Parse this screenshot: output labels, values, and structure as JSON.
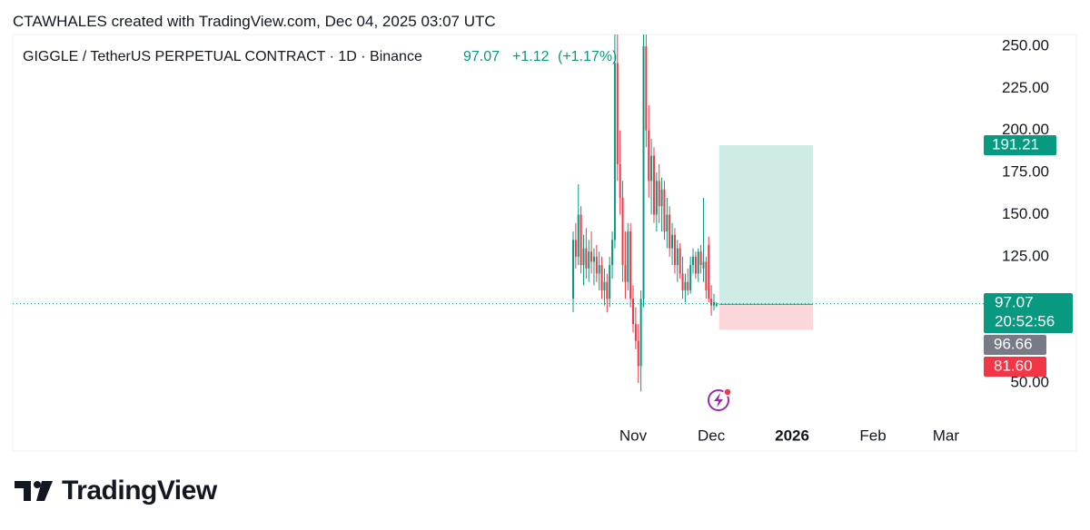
{
  "header": "CTAWHALES created with TradingView.com, Dec 04, 2025 03:07 UTC",
  "footer_logo": "TradingView",
  "chart_data": {
    "type": "candlestick",
    "symbol": "GIGGLE / TetherUS PERPETUAL CONTRACT · 1D · Binance",
    "last_price": 97.07,
    "change": "+1.12",
    "change_pct": "(+1.17%)",
    "countdown": "20:52:56",
    "up_color": "#089981",
    "down_color": "#f23645",
    "xlim": [
      -238,
      135.2
    ],
    "xticks": [
      {
        "value": 0,
        "label": "Nov"
      },
      {
        "value": 30,
        "label": "Dec"
      },
      {
        "value": 61,
        "label": "2026"
      },
      {
        "value": 92,
        "label": "Feb"
      },
      {
        "value": 120,
        "label": "Mar"
      }
    ],
    "ylim": [
      26.8,
      257
    ],
    "yticks": [
      {
        "value": 50,
        "label": "50.00"
      },
      {
        "value": 125,
        "label": "125.00"
      },
      {
        "value": 150,
        "label": "150.00"
      },
      {
        "value": 175,
        "label": "175.00"
      },
      {
        "value": 200,
        "label": "200.00"
      },
      {
        "value": 225,
        "label": "225.00"
      },
      {
        "value": 250,
        "label": "250.00"
      }
    ],
    "x": [
      -23,
      -22,
      -21,
      -20,
      -19,
      -18,
      -17,
      -16,
      -15,
      -14,
      -13,
      -12,
      -11,
      -10,
      -9,
      -8,
      -7,
      -6,
      -5,
      -4,
      -3,
      -2,
      -1,
      0,
      1,
      2,
      3,
      4,
      5,
      6,
      7,
      8,
      9,
      10,
      11,
      12,
      13,
      14,
      15,
      16,
      17,
      18,
      19,
      20,
      21,
      22,
      23,
      24,
      25,
      26,
      27,
      28,
      29,
      30,
      31,
      32
    ],
    "open": [
      100,
      135,
      125,
      150,
      120,
      130,
      118,
      128,
      122,
      125,
      115,
      120,
      105,
      110,
      100,
      120,
      135,
      240,
      180,
      160,
      120,
      110,
      140,
      100,
      85,
      75,
      60,
      100,
      250,
      200,
      170,
      185,
      150,
      170,
      155,
      165,
      140,
      150,
      130,
      138,
      120,
      130,
      115,
      105,
      110,
      105,
      120,
      125,
      115,
      128,
      118,
      122,
      132,
      100,
      96,
      95.95
    ],
    "high": [
      140,
      145,
      168,
      155,
      138,
      142,
      135,
      140,
      130,
      132,
      128,
      125,
      118,
      115,
      125,
      140,
      257,
      257,
      200,
      170,
      140,
      145,
      145,
      108,
      95,
      85,
      105,
      257,
      257,
      215,
      195,
      190,
      175,
      180,
      172,
      170,
      160,
      155,
      145,
      142,
      135,
      133,
      125,
      115,
      118,
      125,
      130,
      128,
      130,
      132,
      160,
      125,
      137,
      108,
      103,
      98
    ],
    "low": [
      92,
      118,
      120,
      115,
      108,
      112,
      110,
      115,
      108,
      110,
      105,
      100,
      96,
      92,
      95,
      112,
      130,
      170,
      150,
      110,
      100,
      105,
      95,
      80,
      70,
      50,
      45,
      95,
      190,
      160,
      150,
      145,
      140,
      145,
      140,
      135,
      130,
      125,
      120,
      115,
      110,
      112,
      100,
      98,
      102,
      103,
      115,
      112,
      110,
      115,
      110,
      100,
      98,
      90,
      93,
      95
    ],
    "close": [
      135,
      125,
      150,
      120,
      130,
      118,
      128,
      122,
      125,
      115,
      120,
      105,
      110,
      100,
      120,
      135,
      240,
      180,
      160,
      120,
      110,
      140,
      100,
      85,
      75,
      60,
      100,
      250,
      200,
      170,
      185,
      150,
      170,
      155,
      165,
      140,
      150,
      130,
      138,
      120,
      130,
      115,
      105,
      110,
      105,
      120,
      125,
      115,
      128,
      120,
      122,
      105,
      100,
      96,
      98,
      97.07
    ],
    "position": {
      "x_start": 33,
      "x_end": 69,
      "target": 191.21,
      "entry": 96.66,
      "stop": 81.6,
      "target_color": "#089981",
      "entry_color": "#787b86",
      "stop_color": "#f23645"
    }
  }
}
